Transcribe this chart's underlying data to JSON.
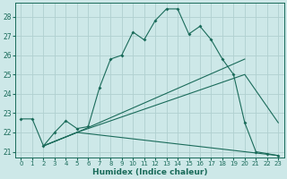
{
  "xlabel": "Humidex (Indice chaleur)",
  "bg_color": "#cde8e8",
  "grid_color": "#b0d0d0",
  "line_color": "#1a6b5a",
  "xlim": [
    -0.5,
    23.5
  ],
  "ylim": [
    20.7,
    28.7
  ],
  "yticks": [
    21,
    22,
    23,
    24,
    25,
    26,
    27,
    28
  ],
  "xticks": [
    0,
    1,
    2,
    3,
    4,
    5,
    6,
    7,
    8,
    9,
    10,
    11,
    12,
    13,
    14,
    15,
    16,
    17,
    18,
    19,
    20,
    21,
    22,
    23
  ],
  "line1_x": [
    0,
    1,
    2,
    3,
    4,
    5,
    6,
    7,
    8,
    9,
    10,
    11,
    12,
    13,
    14,
    15,
    16,
    17,
    18,
    19,
    20,
    21,
    22,
    23
  ],
  "line1_y": [
    22.7,
    22.7,
    21.3,
    22.0,
    22.6,
    22.2,
    22.3,
    24.3,
    25.8,
    26.0,
    27.2,
    26.8,
    27.8,
    28.4,
    28.4,
    27.1,
    27.5,
    26.8,
    25.8,
    25.0,
    22.5,
    21.0,
    20.9,
    20.8
  ],
  "line2_x": [
    2,
    5,
    20
  ],
  "line2_y": [
    21.3,
    22.0,
    25.8
  ],
  "line3_x": [
    2,
    5,
    20,
    23
  ],
  "line3_y": [
    21.3,
    22.0,
    25.0,
    22.5
  ],
  "line4_x": [
    2,
    5,
    20,
    23
  ],
  "line4_y": [
    21.3,
    22.0,
    21.0,
    20.8
  ],
  "xlabel_fontsize": 6.5,
  "tick_fontsize": 5.5,
  "lw": 0.8,
  "ms": 2.0
}
